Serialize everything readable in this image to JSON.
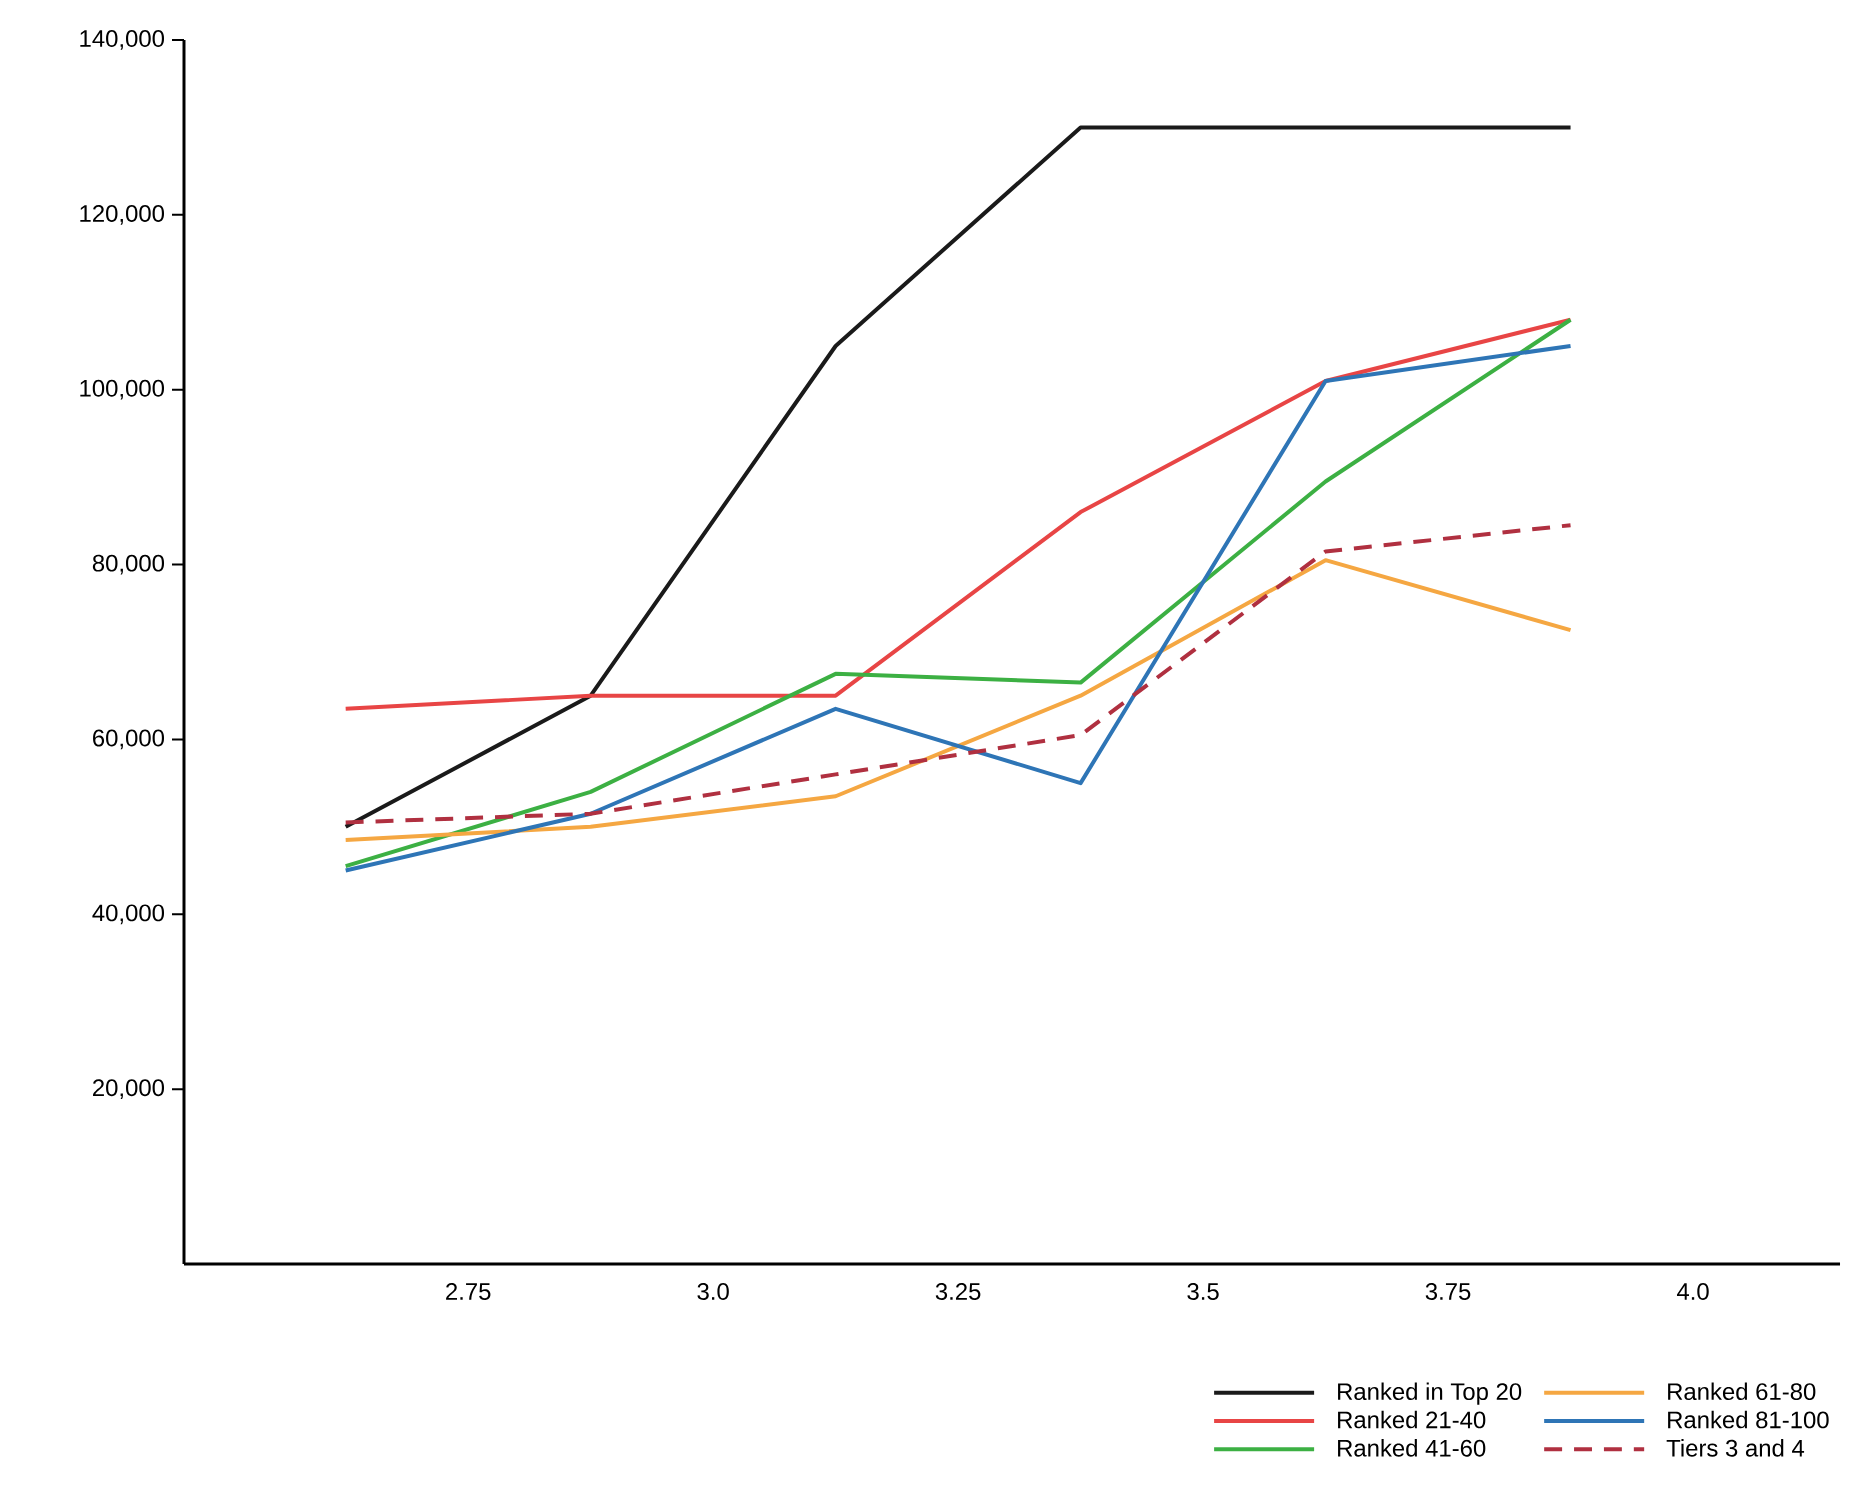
{
  "chart_data": {
    "type": "line",
    "x": [
      2.625,
      2.875,
      3.125,
      3.375,
      3.625,
      3.875
    ],
    "xlim": [
      2.46,
      4.15
    ],
    "xticks": [
      2.75,
      {
        "value": 3.0,
        "label": "3.0"
      },
      3.25,
      3.5,
      3.75,
      {
        "value": 4.0,
        "label": "4.0"
      }
    ],
    "ylim": [
      0,
      140000
    ],
    "yticks": [
      {
        "value": 20000,
        "label": "20,000"
      },
      {
        "value": 40000,
        "label": "40,000"
      },
      {
        "value": 60000,
        "label": "60,000"
      },
      {
        "value": 80000,
        "label": "80,000"
      },
      {
        "value": 100000,
        "label": "100,000"
      },
      {
        "value": 120000,
        "label": "120,000"
      },
      {
        "value": 140000,
        "label": "140,000"
      }
    ],
    "legend": "bottom right",
    "grid": false,
    "series": [
      {
        "name": "Ranked in Top 20",
        "color": "#1a1a1a",
        "values": [
          50000,
          65000,
          105000,
          130000,
          130000,
          130000
        ]
      },
      {
        "name": "Ranked 21-40",
        "color": "#e84545",
        "values": [
          63500,
          65000,
          65000,
          86000,
          101000,
          108000
        ]
      },
      {
        "name": "Ranked 41-60",
        "color": "#3cb043",
        "values": [
          45500,
          54000,
          67500,
          66500,
          89500,
          108000
        ]
      },
      {
        "name": "Ranked 61-80",
        "color": "#f5a742",
        "values": [
          48500,
          50000,
          53500,
          65000,
          80500,
          72500
        ]
      },
      {
        "name": "Ranked 81-100",
        "color": "#2e75b6",
        "values": [
          45000,
          51500,
          63500,
          55000,
          101000,
          105000
        ]
      },
      {
        "name": "Tiers 3 and 4",
        "color": "#b03040",
        "line_style": "dashed",
        "values": [
          50500,
          51500,
          56000,
          60500,
          81500,
          84500
        ]
      }
    ]
  }
}
